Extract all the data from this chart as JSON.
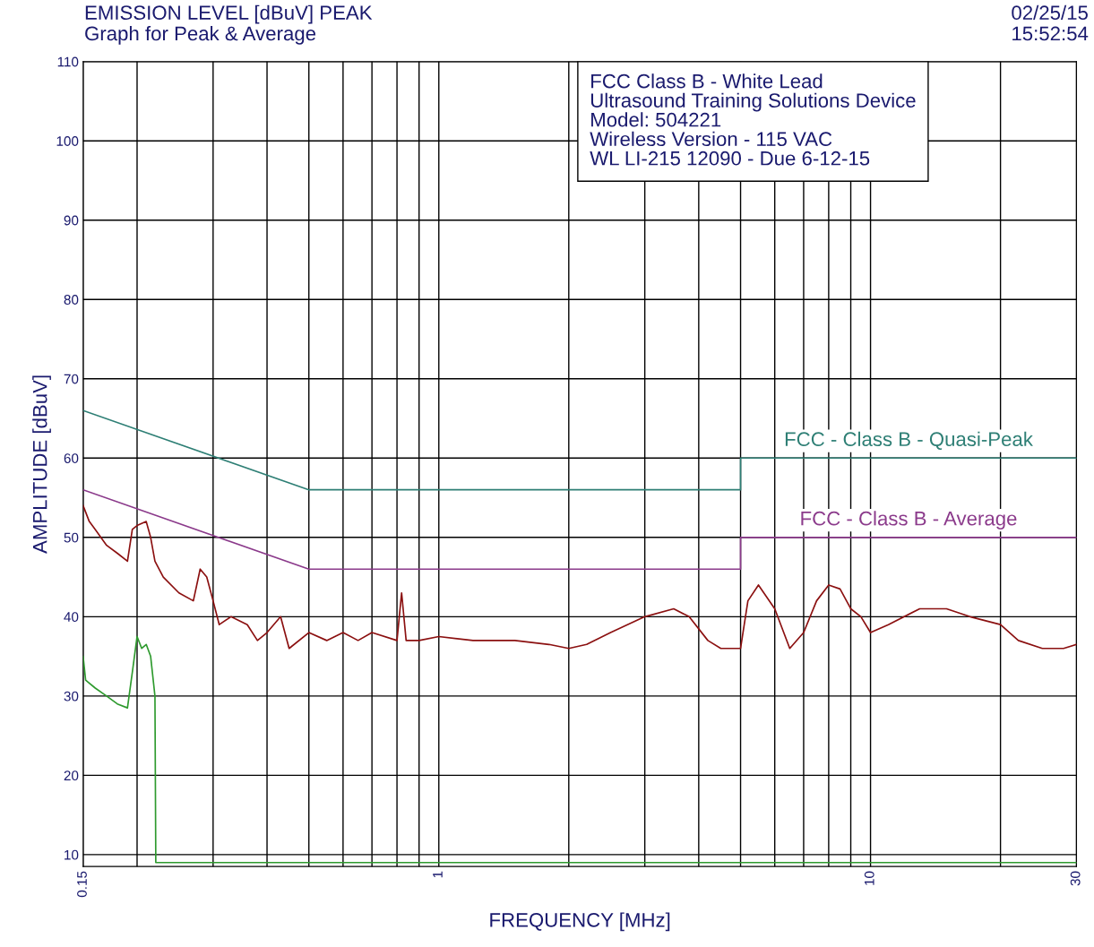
{
  "chart_data": {
    "type": "line",
    "title": "EMISSION LEVEL [dBuV] PEAK",
    "subtitle": "Graph for Peak & Average",
    "xlabel": "FREQUENCY [MHz]",
    "ylabel": "AMPLITUDE [dBuV]",
    "log": "x",
    "grid": true,
    "legend": false,
    "xlim": [
      0.15,
      30
    ],
    "ylim": [
      8.5,
      110
    ],
    "xticks": [
      {
        "value": 0.15,
        "label": "0.15"
      },
      {
        "value": 0.2,
        "label": null
      },
      {
        "value": 0.3,
        "label": null
      },
      {
        "value": 0.4,
        "label": null
      },
      {
        "value": 0.5,
        "label": null
      },
      {
        "value": 0.6,
        "label": null
      },
      {
        "value": 0.7,
        "label": null
      },
      {
        "value": 0.8,
        "label": null
      },
      {
        "value": 0.9,
        "label": null
      },
      1,
      {
        "value": 2,
        "label": null
      },
      {
        "value": 3,
        "label": null
      },
      {
        "value": 4,
        "label": null
      },
      {
        "value": 5,
        "label": null
      },
      {
        "value": 6,
        "label": null
      },
      {
        "value": 7,
        "label": null
      },
      {
        "value": 8,
        "label": null
      },
      {
        "value": 9,
        "label": null
      },
      10,
      {
        "value": 20,
        "label": null
      },
      30
    ],
    "yticks": [
      10,
      20,
      30,
      40,
      50,
      60,
      70,
      80,
      90,
      100,
      110
    ],
    "annotations": [
      "02/25/15",
      "15:52:54",
      "FCC Class B - White Lead",
      "Ultrasound Training Solutions Device",
      "Model: 504221",
      "Wireless Version - 115 VAC",
      "WL LI-215 12090 - Due 6-12-15"
    ],
    "series": [
      {
        "color": "#8b1010",
        "x": [
          0.15,
          0.155,
          0.16,
          0.17,
          0.18,
          0.19,
          0.195,
          0.2,
          0.21,
          0.215,
          0.22,
          0.23,
          0.25,
          0.27,
          0.28,
          0.29,
          0.3,
          0.31,
          0.33,
          0.36,
          0.38,
          0.4,
          0.43,
          0.45,
          0.5,
          0.55,
          0.6,
          0.65,
          0.7,
          0.8,
          0.82,
          0.84,
          0.9,
          1,
          1.2,
          1.5,
          1.8,
          2.0,
          2.2,
          2.5,
          3,
          3.5,
          3.8,
          4.2,
          4.5,
          5,
          5.2,
          5.5,
          6,
          6.5,
          7,
          7.5,
          8,
          8.5,
          9,
          9.5,
          10,
          11,
          13,
          15,
          17,
          20,
          22,
          25,
          28,
          30
        ],
        "values": [
          54,
          52,
          51,
          49,
          48,
          47,
          51,
          51.5,
          52,
          50,
          47,
          45,
          43,
          42,
          46,
          45,
          42,
          39,
          40,
          39,
          37,
          38,
          40,
          36,
          38,
          37,
          38,
          37,
          38,
          37,
          43,
          37,
          37,
          37.5,
          37,
          37,
          36.5,
          36,
          36.5,
          38,
          40,
          41,
          40,
          37,
          36,
          36,
          42,
          44,
          41,
          36,
          38,
          42,
          44,
          43.5,
          41,
          40,
          38,
          39,
          41,
          41,
          40,
          39,
          37,
          36,
          36,
          36.5
        ]
      },
      {
        "color": "#2e9a2e",
        "x": [
          0.15,
          0.152,
          0.16,
          0.17,
          0.18,
          0.19,
          0.195,
          0.2,
          0.205,
          0.21,
          0.215,
          0.22,
          0.221,
          30
        ],
        "values": [
          35,
          32,
          31,
          30,
          29,
          28.5,
          33,
          37.5,
          36,
          36.5,
          35,
          30,
          9,
          9
        ]
      },
      {
        "name": "FCC - Class B - Quasi-Peak",
        "color": "#2e7f75",
        "x": [
          0.15,
          0.5,
          5,
          5,
          30
        ],
        "values": [
          66,
          56,
          56,
          60,
          60
        ]
      },
      {
        "name": "FCC - Class B - Average",
        "color": "#8b3a8b",
        "x": [
          0.15,
          0.5,
          5,
          5,
          30
        ],
        "values": [
          56,
          46,
          46,
          50,
          50
        ]
      }
    ]
  }
}
